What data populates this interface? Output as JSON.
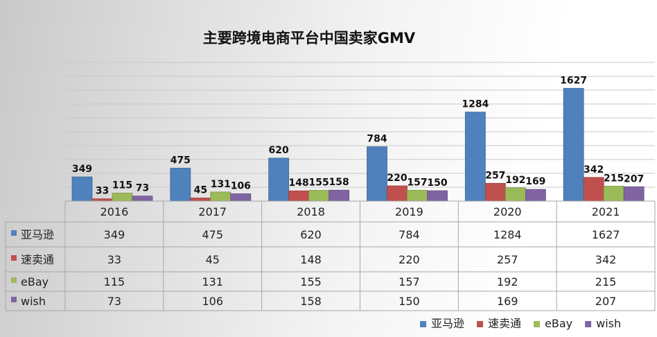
{
  "chart_data": {
    "type": "bar",
    "title": "主要跨境电商平台中国卖家GMV",
    "categories": [
      "2016",
      "2017",
      "2018",
      "2019",
      "2020",
      "2021"
    ],
    "series": [
      {
        "name": "亚马逊",
        "color": "#4f81bd",
        "values": [
          349,
          475,
          620,
          784,
          1284,
          1627
        ]
      },
      {
        "name": "速卖通",
        "color": "#c0504d",
        "values": [
          33,
          45,
          148,
          220,
          257,
          342
        ]
      },
      {
        "name": "eBay",
        "color": "#9bbb59",
        "values": [
          115,
          131,
          155,
          157,
          192,
          215
        ]
      },
      {
        "name": "wish",
        "color": "#8064a2",
        "values": [
          73,
          106,
          158,
          150,
          169,
          207
        ]
      }
    ],
    "ylim": [
      0,
      2000
    ],
    "grid": true,
    "data_table": true,
    "legend_position": "bottom-right"
  }
}
